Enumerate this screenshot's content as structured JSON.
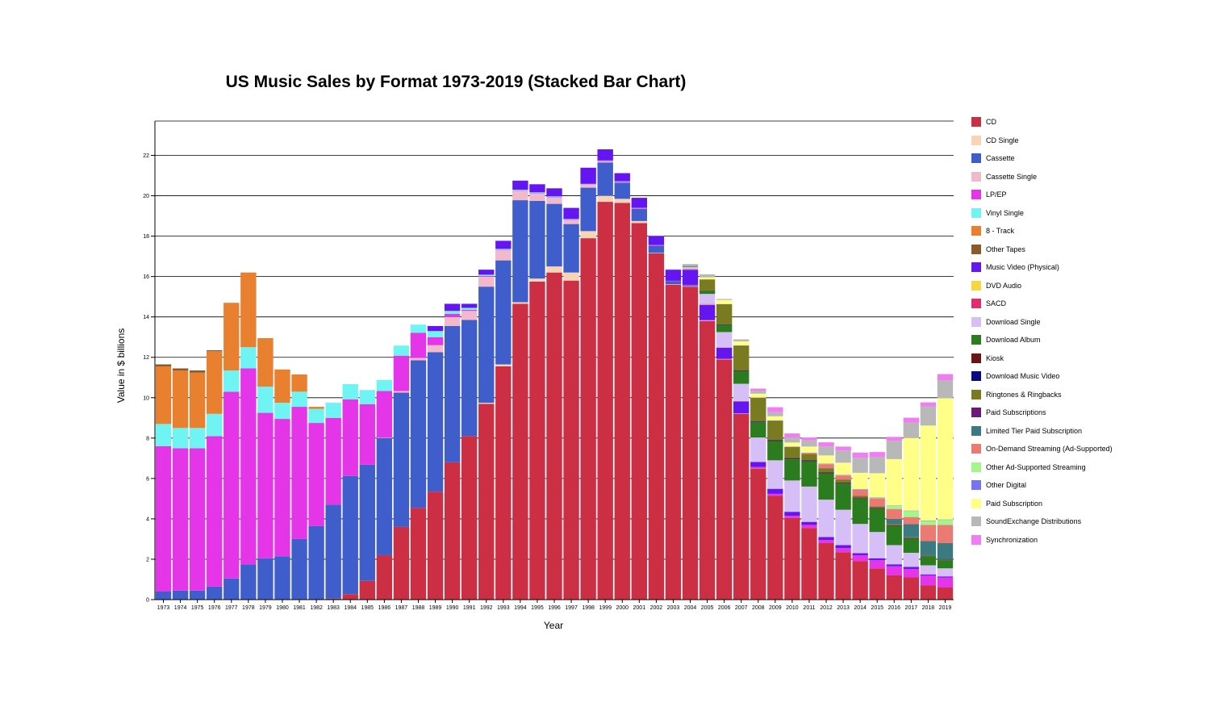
{
  "chart_data": {
    "type": "bar",
    "stacked": true,
    "title": "US Music Sales by Format 1973-2019 (Stacked Bar Chart)",
    "xlabel": "Year",
    "ylabel": "Value in $ billions",
    "ylim": [
      0,
      23.7
    ],
    "yticks": [
      0,
      2,
      4,
      6,
      8,
      10,
      12,
      14,
      16,
      18,
      20,
      22
    ],
    "grid": true,
    "legend_position": "right",
    "categories": [
      "1973",
      "1974",
      "1975",
      "1976",
      "1977",
      "1978",
      "1979",
      "1980",
      "1981",
      "1982",
      "1983",
      "1984",
      "1985",
      "1986",
      "1987",
      "1988",
      "1989",
      "1990",
      "1991",
      "1992",
      "1993",
      "1994",
      "1995",
      "1996",
      "1997",
      "1998",
      "1999",
      "2000",
      "2001",
      "2002",
      "2003",
      "2004",
      "2005",
      "2006",
      "2007",
      "2008",
      "2009",
      "2010",
      "2011",
      "2012",
      "2013",
      "2014",
      "2015",
      "2016",
      "2017",
      "2018",
      "2019"
    ],
    "series": [
      {
        "name": "CD",
        "color": "#cc2f43",
        "values": [
          0,
          0,
          0,
          0,
          0,
          0,
          0,
          0,
          0,
          0,
          0.05,
          0.27,
          0.93,
          2.2,
          3.6,
          4.55,
          5.35,
          6.8,
          8.1,
          9.7,
          11.55,
          14.65,
          15.75,
          16.2,
          15.8,
          17.9,
          19.7,
          19.65,
          18.65,
          17.15,
          15.6,
          15.5,
          13.8,
          11.9,
          9.2,
          6.5,
          5.15,
          4.05,
          3.55,
          2.8,
          2.35,
          1.9,
          1.55,
          1.2,
          1.1,
          0.7,
          0.6
        ]
      },
      {
        "name": "CD Single",
        "color": "#f8d4b4",
        "values": [
          0,
          0,
          0,
          0,
          0,
          0,
          0,
          0,
          0,
          0,
          0,
          0,
          0,
          0,
          0,
          0,
          0,
          0,
          0,
          0.05,
          0.1,
          0.08,
          0.15,
          0.3,
          0.4,
          0.35,
          0.3,
          0.2,
          0.1,
          0.02,
          0.02,
          0.02,
          0.02,
          0.01,
          0.01,
          0.01,
          0,
          0,
          0,
          0,
          0,
          0,
          0,
          0,
          0,
          0,
          0
        ]
      },
      {
        "name": "Cassette",
        "color": "#3f5ecc",
        "values": [
          0.4,
          0.45,
          0.45,
          0.65,
          1.05,
          1.75,
          2.05,
          2.15,
          3.0,
          3.65,
          4.65,
          5.85,
          5.75,
          5.8,
          6.65,
          7.3,
          6.9,
          6.75,
          5.75,
          5.75,
          5.15,
          5.05,
          3.85,
          3.1,
          2.4,
          2.15,
          1.65,
          0.8,
          0.6,
          0.35,
          0.15,
          0.05,
          0.01,
          0.01,
          0,
          0,
          0,
          0,
          0,
          0,
          0,
          0,
          0,
          0,
          0,
          0,
          0
        ]
      },
      {
        "name": "Cassette Single",
        "color": "#f2b8cc",
        "values": [
          0,
          0,
          0,
          0,
          0,
          0,
          0,
          0,
          0,
          0,
          0,
          0,
          0,
          0.03,
          0.08,
          0.12,
          0.35,
          0.45,
          0.45,
          0.5,
          0.5,
          0.45,
          0.35,
          0.3,
          0.2,
          0.15,
          0.05,
          0.02,
          0.01,
          0,
          0,
          0,
          0,
          0,
          0,
          0,
          0,
          0,
          0,
          0,
          0,
          0,
          0,
          0,
          0,
          0,
          0
        ]
      },
      {
        "name": "LP/EP",
        "color": "#e535e8",
        "values": [
          7.2,
          7.05,
          7.05,
          7.45,
          9.25,
          9.7,
          7.2,
          6.8,
          6.55,
          5.1,
          4.3,
          3.8,
          3.0,
          2.3,
          1.75,
          1.25,
          0.4,
          0.15,
          0.05,
          0.03,
          0.02,
          0.02,
          0.02,
          0.02,
          0.02,
          0.02,
          0.03,
          0.03,
          0.03,
          0.03,
          0.02,
          0.02,
          0.02,
          0.01,
          0.01,
          0.06,
          0.09,
          0.1,
          0.15,
          0.15,
          0.2,
          0.3,
          0.4,
          0.45,
          0.42,
          0.5,
          0.5
        ]
      },
      {
        "name": "Vinyl Single",
        "color": "#6ff3f3",
        "values": [
          1.1,
          1.0,
          1.0,
          1.1,
          1.05,
          1.05,
          1.3,
          0.8,
          0.75,
          0.7,
          0.75,
          0.75,
          0.7,
          0.55,
          0.5,
          0.4,
          0.3,
          0.15,
          0.1,
          0.06,
          0.05,
          0.05,
          0.05,
          0.05,
          0.03,
          0.02,
          0.02,
          0.02,
          0.01,
          0.01,
          0,
          0,
          0,
          0,
          0,
          0,
          0,
          0,
          0,
          0,
          0,
          0,
          0,
          0,
          0,
          0,
          0
        ]
      },
      {
        "name": "8 - Track",
        "color": "#e88030",
        "values": [
          2.85,
          2.85,
          2.75,
          3.1,
          3.35,
          3.7,
          2.4,
          1.65,
          0.85,
          0.1,
          0,
          0,
          0,
          0,
          0,
          0,
          0,
          0,
          0,
          0,
          0,
          0,
          0,
          0,
          0,
          0,
          0,
          0,
          0,
          0,
          0,
          0,
          0,
          0,
          0,
          0,
          0,
          0,
          0,
          0,
          0,
          0,
          0,
          0,
          0,
          0,
          0
        ]
      },
      {
        "name": "Other Tapes",
        "color": "#8b5a2b",
        "values": [
          0.1,
          0.1,
          0.1,
          0.05,
          0,
          0,
          0,
          0,
          0,
          0,
          0,
          0,
          0,
          0,
          0,
          0,
          0,
          0,
          0,
          0,
          0,
          0,
          0,
          0,
          0,
          0,
          0,
          0,
          0,
          0,
          0,
          0,
          0,
          0,
          0,
          0,
          0,
          0,
          0,
          0,
          0,
          0,
          0,
          0,
          0,
          0,
          0
        ]
      },
      {
        "name": "Music Video (Physical)",
        "color": "#6515f0",
        "values": [
          0,
          0,
          0,
          0,
          0,
          0,
          0,
          0,
          0,
          0,
          0,
          0,
          0,
          0,
          0,
          0,
          0.25,
          0.35,
          0.2,
          0.25,
          0.4,
          0.45,
          0.4,
          0.4,
          0.55,
          0.8,
          0.55,
          0.4,
          0.5,
          0.45,
          0.55,
          0.75,
          0.75,
          0.55,
          0.6,
          0.25,
          0.25,
          0.2,
          0.15,
          0.15,
          0.15,
          0.1,
          0.1,
          0.1,
          0.1,
          0.05,
          0.05
        ]
      },
      {
        "name": "DVD Audio",
        "color": "#f5d742",
        "values": [
          0,
          0,
          0,
          0,
          0,
          0,
          0,
          0,
          0,
          0,
          0,
          0,
          0,
          0,
          0,
          0,
          0,
          0,
          0,
          0,
          0,
          0,
          0,
          0,
          0,
          0,
          0,
          0,
          0,
          0,
          0,
          0.02,
          0.02,
          0.01,
          0.01,
          0.01,
          0.01,
          0,
          0,
          0,
          0,
          0,
          0,
          0,
          0,
          0,
          0
        ]
      },
      {
        "name": "SACD",
        "color": "#e02d70",
        "values": [
          0,
          0,
          0,
          0,
          0,
          0,
          0,
          0,
          0,
          0,
          0,
          0,
          0,
          0,
          0,
          0,
          0,
          0,
          0,
          0,
          0,
          0,
          0,
          0,
          0,
          0,
          0,
          0,
          0,
          0,
          0,
          0.02,
          0.02,
          0.01,
          0.01,
          0,
          0,
          0,
          0,
          0,
          0,
          0,
          0,
          0,
          0,
          0,
          0
        ]
      },
      {
        "name": "Download Single",
        "color": "#d6bff7",
        "values": [
          0,
          0,
          0,
          0,
          0,
          0,
          0,
          0,
          0,
          0,
          0,
          0,
          0,
          0,
          0,
          0,
          0,
          0,
          0,
          0,
          0,
          0,
          0,
          0,
          0,
          0,
          0,
          0,
          0,
          0,
          0,
          0.1,
          0.5,
          0.75,
          0.85,
          1.2,
          1.4,
          1.55,
          1.75,
          1.85,
          1.75,
          1.45,
          1.3,
          0.95,
          0.7,
          0.45,
          0.4
        ]
      },
      {
        "name": "Download Album",
        "color": "#2b7c1e",
        "values": [
          0,
          0,
          0,
          0,
          0,
          0,
          0,
          0,
          0,
          0,
          0,
          0,
          0,
          0,
          0,
          0,
          0,
          0,
          0,
          0,
          0,
          0,
          0,
          0,
          0,
          0,
          0,
          0,
          0,
          0,
          0,
          0.04,
          0.15,
          0.35,
          0.6,
          0.75,
          0.95,
          1.05,
          1.25,
          1.3,
          1.3,
          1.25,
          1.15,
          0.95,
          0.7,
          0.45,
          0.4
        ]
      },
      {
        "name": "Kiosk",
        "color": "#6b1413",
        "values": [
          0,
          0,
          0,
          0,
          0,
          0,
          0,
          0,
          0,
          0,
          0,
          0,
          0,
          0,
          0,
          0,
          0,
          0,
          0,
          0,
          0,
          0,
          0,
          0,
          0,
          0,
          0,
          0,
          0,
          0,
          0,
          0,
          0.01,
          0.01,
          0.01,
          0.02,
          0.03,
          0.03,
          0.03,
          0.03,
          0.03,
          0.03,
          0.03,
          0.03,
          0.03,
          0.02,
          0.02
        ]
      },
      {
        "name": "Download Music Video",
        "color": "#0a0a80",
        "values": [
          0,
          0,
          0,
          0,
          0,
          0,
          0,
          0,
          0,
          0,
          0,
          0,
          0,
          0,
          0,
          0,
          0,
          0,
          0,
          0,
          0,
          0,
          0,
          0,
          0,
          0,
          0,
          0,
          0,
          0,
          0,
          0,
          0.01,
          0.02,
          0.03,
          0.03,
          0.03,
          0.03,
          0.03,
          0.03,
          0.02,
          0.02,
          0.02,
          0.01,
          0.01,
          0.01,
          0.01
        ]
      },
      {
        "name": "Ringtones & Ringbacks",
        "color": "#7a7a20",
        "values": [
          0,
          0,
          0,
          0,
          0,
          0,
          0,
          0,
          0,
          0,
          0,
          0,
          0,
          0,
          0,
          0,
          0,
          0,
          0,
          0,
          0,
          0,
          0,
          0,
          0,
          0,
          0,
          0,
          0,
          0,
          0,
          0,
          0.55,
          1.0,
          1.25,
          1.15,
          0.95,
          0.55,
          0.3,
          0.2,
          0.15,
          0.1,
          0.07,
          0.05,
          0.03,
          0.02,
          0.02
        ]
      },
      {
        "name": "Paid Subscriptions",
        "color": "#6b1a7a",
        "values": [
          0,
          0,
          0,
          0,
          0,
          0,
          0,
          0,
          0,
          0,
          0,
          0,
          0,
          0,
          0,
          0,
          0,
          0,
          0,
          0,
          0,
          0,
          0,
          0,
          0,
          0,
          0,
          0,
          0,
          0,
          0,
          0,
          0,
          0,
          0,
          0,
          0,
          0,
          0,
          0,
          0,
          0,
          0,
          0,
          0,
          0,
          0
        ]
      },
      {
        "name": "Limited Tier Paid Subscription",
        "color": "#3a7a80",
        "values": [
          0,
          0,
          0,
          0,
          0,
          0,
          0,
          0,
          0,
          0,
          0,
          0,
          0,
          0,
          0,
          0,
          0,
          0,
          0,
          0,
          0,
          0,
          0,
          0,
          0,
          0,
          0,
          0,
          0,
          0,
          0,
          0,
          0,
          0,
          0,
          0,
          0,
          0,
          0,
          0,
          0,
          0,
          0,
          0.25,
          0.65,
          0.7,
          0.8
        ]
      },
      {
        "name": "On-Demand Streaming (Ad-Supported)",
        "color": "#ea7a72",
        "values": [
          0,
          0,
          0,
          0,
          0,
          0,
          0,
          0,
          0,
          0,
          0,
          0,
          0,
          0,
          0,
          0,
          0,
          0,
          0,
          0,
          0,
          0,
          0,
          0,
          0,
          0,
          0,
          0,
          0,
          0,
          0,
          0,
          0,
          0,
          0,
          0,
          0,
          0,
          0.05,
          0.2,
          0.2,
          0.3,
          0.4,
          0.5,
          0.35,
          0.8,
          0.9
        ]
      },
      {
        "name": "Other Ad-Supported Streaming",
        "color": "#a3f58c",
        "values": [
          0,
          0,
          0,
          0,
          0,
          0,
          0,
          0,
          0,
          0,
          0,
          0,
          0,
          0,
          0,
          0,
          0,
          0,
          0,
          0,
          0,
          0,
          0,
          0,
          0,
          0,
          0,
          0,
          0,
          0,
          0,
          0,
          0,
          0,
          0,
          0,
          0,
          0,
          0,
          0.01,
          0.01,
          0.01,
          0.02,
          0.15,
          0.3,
          0.2,
          0.25
        ]
      },
      {
        "name": "Other Digital",
        "color": "#7474f5",
        "values": [
          0,
          0,
          0,
          0,
          0,
          0,
          0,
          0,
          0,
          0,
          0,
          0,
          0,
          0,
          0,
          0,
          0,
          0,
          0,
          0,
          0,
          0,
          0,
          0,
          0,
          0,
          0,
          0,
          0,
          0,
          0,
          0,
          0,
          0.01,
          0.01,
          0.02,
          0.02,
          0.02,
          0.02,
          0.02,
          0.02,
          0.02,
          0.02,
          0.02,
          0.02,
          0.02,
          0.02
        ]
      },
      {
        "name": "Paid Subscription",
        "color": "#ffff88",
        "values": [
          0,
          0,
          0,
          0,
          0,
          0,
          0,
          0,
          0,
          0,
          0,
          0,
          0,
          0,
          0,
          0,
          0,
          0,
          0,
          0,
          0,
          0,
          0,
          0,
          0,
          0,
          0,
          0,
          0,
          0,
          0,
          0,
          0.1,
          0.2,
          0.2,
          0.2,
          0.2,
          0.2,
          0.3,
          0.4,
          0.6,
          0.8,
          1.2,
          2.3,
          3.6,
          4.7,
          6.0
        ]
      },
      {
        "name": "SoundExchange Distributions",
        "color": "#b8b8b8",
        "values": [
          0,
          0,
          0,
          0,
          0,
          0,
          0,
          0,
          0,
          0,
          0,
          0,
          0,
          0,
          0,
          0,
          0,
          0,
          0,
          0,
          0,
          0,
          0,
          0,
          0,
          0,
          0,
          0,
          0,
          0.01,
          0.02,
          0.1,
          0.15,
          0.05,
          0.1,
          0.15,
          0.2,
          0.25,
          0.3,
          0.45,
          0.6,
          0.75,
          0.8,
          0.9,
          0.75,
          0.95,
          0.9
        ]
      },
      {
        "name": "Synchronization",
        "color": "#f07ef2",
        "values": [
          0,
          0,
          0,
          0,
          0,
          0,
          0,
          0,
          0,
          0,
          0,
          0,
          0,
          0,
          0,
          0,
          0,
          0,
          0,
          0,
          0,
          0,
          0,
          0,
          0,
          0,
          0,
          0,
          0,
          0,
          0,
          0,
          0,
          0,
          0,
          0.1,
          0.25,
          0.2,
          0.15,
          0.2,
          0.2,
          0.25,
          0.25,
          0.2,
          0.25,
          0.2,
          0.3
        ]
      }
    ]
  }
}
